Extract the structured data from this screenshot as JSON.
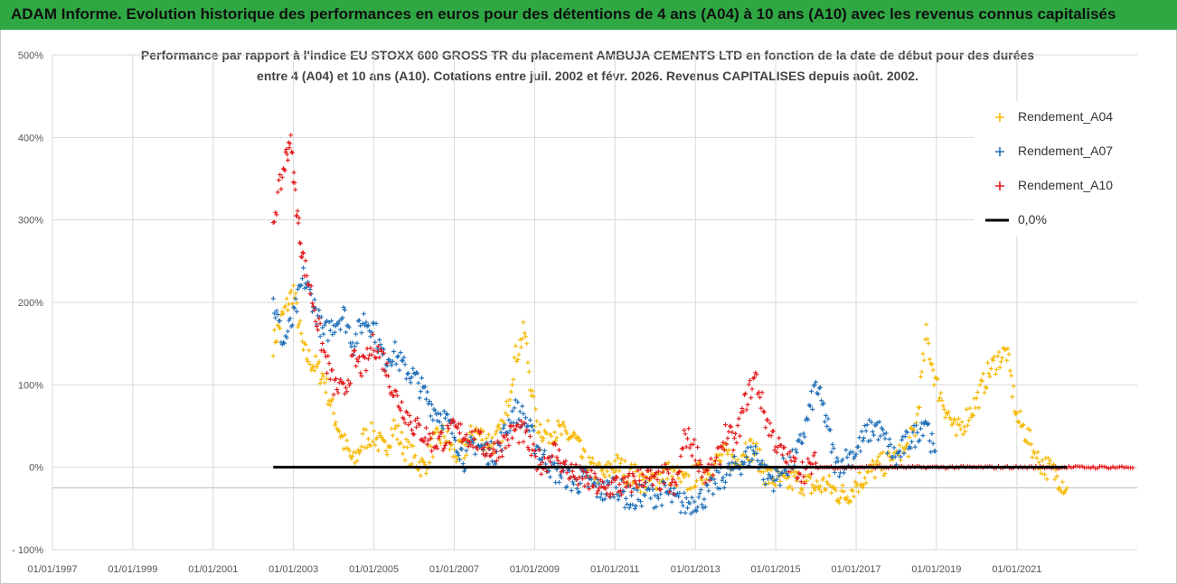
{
  "banner": {
    "title": "ADAM Informe. Evolution historique des performances en euros pour des détentions de 4 ans (A04) à 10 ans (A10) avec les revenus connus capitalisés"
  },
  "chart_data": {
    "type": "scatter",
    "title": "Performance par rapport à l'indice EU STOXX 600 GROSS TR  du placement AMBUJA CEMENTS LTD en fonction de la date de début pour des durées entre 4 (A04) et 10 ans (A10).  Cotations entre juil. 2002 et févr. 2026. Revenus CAPITALISES depuis août. 2002.",
    "title_lines": [
      "Performance par rapport à l'indice EU STOXX 600 GROSS TR  du placement AMBUJA CEMENTS LTD en fonction de la date de début pour des durées",
      "entre 4 (A04) et 10 ans (A10).  Cotations entre juil. 2002 et févr. 2026. Revenus CAPITALISES depuis août. 2002."
    ],
    "xlabel": "",
    "ylabel": "",
    "x_ticks": [
      "01/01/1997",
      "01/01/1999",
      "01/01/2001",
      "01/01/2003",
      "01/01/2005",
      "01/01/2007",
      "01/01/2009",
      "01/01/2011",
      "01/01/2013",
      "01/01/2015",
      "01/01/2017",
      "01/01/2019",
      "01/01/2021"
    ],
    "y_ticks": [
      "500%",
      "400%",
      "300%",
      "200%",
      "100%",
      "0%",
      "- 100%"
    ],
    "ylim": [
      -100,
      500
    ],
    "xlim": [
      "1997-01-01",
      "2023-12-31"
    ],
    "grid": true,
    "legend_position": "top-right",
    "series": [
      {
        "name": "Rendement_A04",
        "color": "#f5b800",
        "marker": "+",
        "x": [
          "2002-07",
          "2002-10",
          "2003-01",
          "2003-04",
          "2003-07",
          "2003-10",
          "2004-01",
          "2004-04",
          "2004-07",
          "2004-10",
          "2005-01",
          "2005-04",
          "2005-07",
          "2005-10",
          "2006-01",
          "2006-04",
          "2006-07",
          "2006-10",
          "2007-01",
          "2007-04",
          "2007-07",
          "2007-10",
          "2008-01",
          "2008-04",
          "2008-07",
          "2008-10",
          "2009-01",
          "2009-04",
          "2009-07",
          "2009-10",
          "2010-01",
          "2010-04",
          "2010-07",
          "2010-10",
          "2011-01",
          "2011-04",
          "2011-07",
          "2011-10",
          "2012-01",
          "2012-04",
          "2012-07",
          "2012-10",
          "2013-01",
          "2013-04",
          "2013-07",
          "2013-10",
          "2014-01",
          "2014-04",
          "2014-07",
          "2014-10",
          "2015-01",
          "2015-04",
          "2015-07",
          "2015-10",
          "2016-01",
          "2016-04",
          "2016-07",
          "2016-10",
          "2017-01",
          "2017-04",
          "2017-07",
          "2017-10",
          "2018-01",
          "2018-04",
          "2018-07",
          "2018-10",
          "2019-01",
          "2019-04",
          "2019-07",
          "2019-10",
          "2020-01",
          "2020-04",
          "2020-07",
          "2020-10",
          "2021-01",
          "2021-04",
          "2021-07",
          "2021-10",
          "2022-01",
          "2022-04"
        ],
        "y": [
          150,
          185,
          215,
          140,
          125,
          110,
          65,
          30,
          5,
          35,
          40,
          20,
          50,
          25,
          10,
          0,
          30,
          40,
          15,
          20,
          45,
          35,
          30,
          50,
          130,
          165,
          60,
          40,
          45,
          40,
          35,
          5,
          -5,
          -10,
          5,
          -5,
          -10,
          -20,
          -15,
          -5,
          -10,
          -20,
          -10,
          -5,
          5,
          15,
          5,
          25,
          20,
          -10,
          -15,
          -20,
          -15,
          -20,
          -25,
          -20,
          -30,
          -35,
          -20,
          -10,
          0,
          5,
          10,
          20,
          50,
          160,
          100,
          70,
          40,
          60,
          80,
          110,
          130,
          140,
          60,
          40,
          10,
          0,
          -10,
          -25
        ]
      },
      {
        "name": "Rendement_A07",
        "color": "#1f6fb8",
        "marker": "+",
        "x": [
          "2002-07",
          "2002-10",
          "2003-01",
          "2003-04",
          "2003-07",
          "2003-10",
          "2004-01",
          "2004-04",
          "2004-07",
          "2004-10",
          "2005-01",
          "2005-04",
          "2005-07",
          "2005-10",
          "2006-01",
          "2006-04",
          "2006-07",
          "2006-10",
          "2007-01",
          "2007-04",
          "2007-07",
          "2007-10",
          "2008-01",
          "2008-04",
          "2008-07",
          "2008-10",
          "2009-01",
          "2009-04",
          "2009-07",
          "2009-10",
          "2010-01",
          "2010-04",
          "2010-07",
          "2010-10",
          "2011-01",
          "2011-04",
          "2011-07",
          "2011-10",
          "2012-01",
          "2012-04",
          "2012-07",
          "2012-10",
          "2013-01",
          "2013-04",
          "2013-07",
          "2013-10",
          "2014-01",
          "2014-04",
          "2014-07",
          "2014-10",
          "2015-01",
          "2015-04",
          "2015-07",
          "2015-10",
          "2016-01",
          "2016-04",
          "2016-07",
          "2016-10",
          "2017-01",
          "2017-04",
          "2017-07",
          "2017-10",
          "2018-01",
          "2018-04",
          "2018-07",
          "2018-10",
          "2019-01"
        ],
        "y": [
          200,
          150,
          180,
          230,
          200,
          160,
          175,
          185,
          150,
          180,
          170,
          130,
          140,
          120,
          110,
          90,
          70,
          60,
          40,
          10,
          30,
          20,
          15,
          40,
          70,
          60,
          30,
          10,
          -5,
          -10,
          -20,
          -15,
          -25,
          -30,
          -20,
          -35,
          -40,
          -30,
          -35,
          -30,
          -40,
          -45,
          -40,
          -35,
          -20,
          -10,
          0,
          10,
          20,
          -10,
          -15,
          0,
          10,
          50,
          100,
          60,
          0,
          10,
          20,
          40,
          50,
          30,
          10,
          30,
          40,
          60,
          0
        ]
      },
      {
        "name": "Rendement_A10",
        "color": "#e31a1c",
        "marker": "+",
        "x": [
          "2002-07",
          "2002-10",
          "2002-12",
          "2003-02",
          "2003-04",
          "2003-07",
          "2003-10",
          "2004-01",
          "2004-04",
          "2004-07",
          "2004-10",
          "2005-01",
          "2005-04",
          "2005-07",
          "2005-10",
          "2006-01",
          "2006-04",
          "2006-07",
          "2006-10",
          "2007-01",
          "2007-04",
          "2007-07",
          "2007-10",
          "2008-01",
          "2008-04",
          "2008-07",
          "2008-10",
          "2009-01",
          "2009-04",
          "2009-07",
          "2009-10",
          "2010-01",
          "2010-04",
          "2010-07",
          "2010-10",
          "2011-01",
          "2011-04",
          "2011-07",
          "2011-10",
          "2012-01",
          "2012-04",
          "2012-07",
          "2012-10",
          "2013-01",
          "2013-04",
          "2013-07",
          "2013-10",
          "2014-01",
          "2014-04",
          "2014-07",
          "2014-10",
          "2015-01",
          "2015-04",
          "2015-07",
          "2015-10",
          "2016-01"
        ],
        "y": [
          300,
          360,
          400,
          310,
          250,
          200,
          140,
          100,
          90,
          130,
          120,
          150,
          130,
          90,
          70,
          50,
          40,
          30,
          35,
          45,
          40,
          35,
          25,
          20,
          30,
          45,
          40,
          10,
          5,
          20,
          0,
          -10,
          -15,
          -20,
          -30,
          -20,
          -25,
          -15,
          -10,
          -20,
          -10,
          -30,
          40,
          20,
          -10,
          0,
          40,
          30,
          80,
          110,
          60,
          30,
          10,
          0,
          -5,
          5
        ]
      },
      {
        "name": "0,0%",
        "color": "#000000",
        "type": "line",
        "x": [
          "2002-07",
          "2022-04"
        ],
        "y": [
          0,
          0
        ]
      }
    ]
  }
}
